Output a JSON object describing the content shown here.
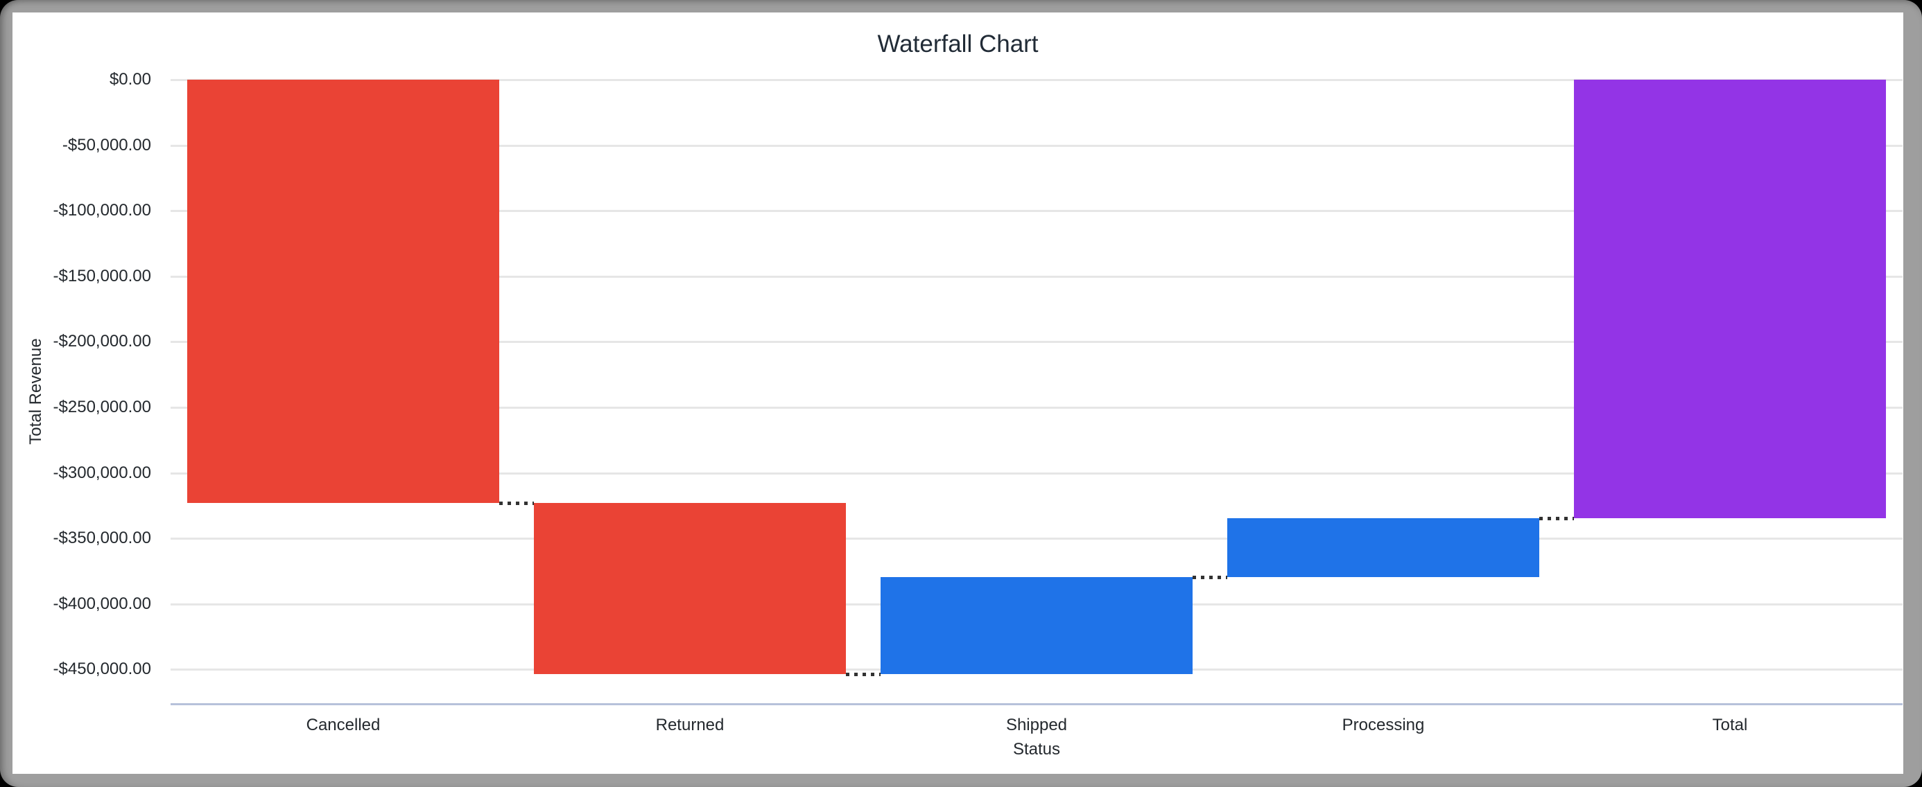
{
  "page": {
    "background_color": "#000000",
    "card_border_color": "#9e9e9e"
  },
  "chart_data": {
    "type": "waterfall",
    "title": "Waterfall Chart",
    "xlabel": "Status",
    "ylabel": "Total Revenue",
    "categories": [
      "Cancelled",
      "Returned",
      "Shipped",
      "Processing",
      "Total"
    ],
    "bars": [
      {
        "label": "Cancelled",
        "delta": -322800,
        "start": 0,
        "end": -322800,
        "role": "decrease"
      },
      {
        "label": "Returned",
        "delta": -130900,
        "start": -322800,
        "end": -453700,
        "role": "decrease"
      },
      {
        "label": "Shipped",
        "delta": 74200,
        "start": -453700,
        "end": -379500,
        "role": "increase"
      },
      {
        "label": "Processing",
        "delta": 44900,
        "start": -379500,
        "end": -334600,
        "role": "increase"
      },
      {
        "label": "Total",
        "delta": -334600,
        "start": 0,
        "end": -334600,
        "role": "total"
      }
    ],
    "colors": {
      "decrease": "#ea4335",
      "increase": "#1f73e8",
      "total": "#9334e6",
      "gridline": "#e6e6e6",
      "axis_baseline": "#b7c1da",
      "connector": "#323232"
    },
    "connector_style": "dotted",
    "legend": "none",
    "grid": true,
    "y_axis": {
      "max": 0,
      "min": -476000,
      "tick_step": 50000,
      "ticks": [
        {
          "value": 0,
          "label": "$0.00"
        },
        {
          "value": -50000,
          "label": "-$50,000.00"
        },
        {
          "value": -100000,
          "label": "-$100,000.00"
        },
        {
          "value": -150000,
          "label": "-$150,000.00"
        },
        {
          "value": -200000,
          "label": "-$200,000.00"
        },
        {
          "value": -250000,
          "label": "-$250,000.00"
        },
        {
          "value": -300000,
          "label": "-$300,000.00"
        },
        {
          "value": -350000,
          "label": "-$350,000.00"
        },
        {
          "value": -400000,
          "label": "-$400,000.00"
        },
        {
          "value": -450000,
          "label": "-$450,000.00"
        }
      ]
    }
  }
}
